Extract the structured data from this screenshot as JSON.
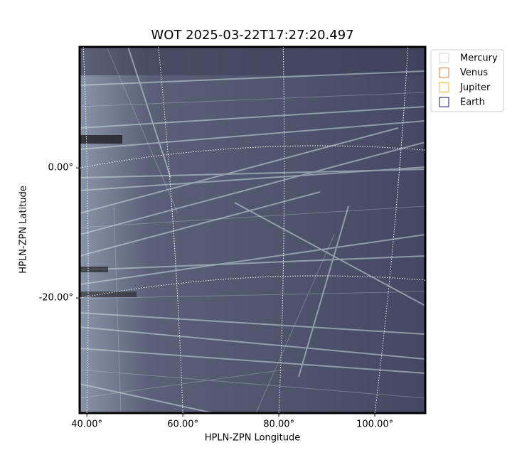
{
  "chart_data": {
    "type": "image",
    "title": "WOT 2025-03-22T17:27:20.497",
    "xlabel": "HPLN-ZPN Longitude",
    "ylabel": "HPLN-ZPN Latitude",
    "xlim": [
      38.5,
      110.5
    ],
    "xticks": [
      {
        "value": 40,
        "label": "40.00°"
      },
      {
        "value": 60,
        "label": "60.00°"
      },
      {
        "value": 80,
        "label": "80.00°"
      },
      {
        "value": 100,
        "label": "100.00°"
      }
    ],
    "ylim": [
      -37.7,
      18.6
    ],
    "yticks": [
      {
        "value": 0,
        "label": "0.00°"
      },
      {
        "value": -20,
        "label": "-20.00°"
      }
    ],
    "grid": true,
    "series": [
      {
        "name": "Mercury",
        "color": "#d3d3d3"
      },
      {
        "name": "Venus",
        "color": "#e07b39"
      },
      {
        "name": "Jupiter",
        "color": "#e8b820"
      },
      {
        "name": "Earth",
        "color": "#1a1a80"
      }
    ]
  }
}
